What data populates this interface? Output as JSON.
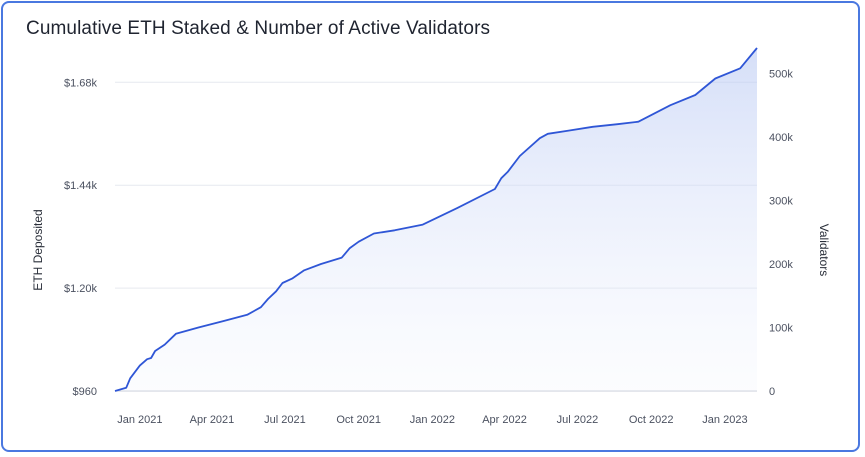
{
  "chart_data": {
    "type": "area",
    "title": "Cumulative ETH Staked & Number of Active Validators",
    "ylabel": "ETH Deposited",
    "y2label": "Validators",
    "ylim": [
      960,
      1760
    ],
    "y_ticks": [
      "$960",
      "$1.20k",
      "$1.44k",
      "$1.68k"
    ],
    "y_tick_values": [
      960,
      1200,
      1440,
      1680
    ],
    "y2lim": [
      0,
      540000
    ],
    "y2_ticks": [
      "0",
      "100k",
      "200k",
      "300k",
      "400k",
      "500k"
    ],
    "y2_tick_values": [
      0,
      100000,
      200000,
      300000,
      400000,
      500000
    ],
    "x_ticks": [
      "Jan 2021",
      "Apr 2021",
      "Jul 2021",
      "Oct 2021",
      "Jan 2022",
      "Apr 2022",
      "Jul 2022",
      "Oct 2022",
      "Jan 2023"
    ],
    "grid": true,
    "series": [
      {
        "values_axis": "y2",
        "x": [
          "2020-12-01",
          "2020-12-15",
          "2020-12-20",
          "2021-01-01",
          "2021-01-10",
          "2021-01-15",
          "2021-01-20",
          "2021-02-01",
          "2021-02-15",
          "2021-03-15",
          "2021-04-15",
          "2021-05-15",
          "2021-06-01",
          "2021-06-10",
          "2021-06-20",
          "2021-06-28",
          "2021-07-10",
          "2021-07-25",
          "2021-08-15",
          "2021-09-10",
          "2021-09-20",
          "2021-10-01",
          "2021-10-20",
          "2021-11-15",
          "2021-12-20",
          "2022-02-01",
          "2022-03-20",
          "2022-03-28",
          "2022-04-05",
          "2022-04-20",
          "2022-05-15",
          "2022-05-25",
          "2022-06-20",
          "2022-07-20",
          "2022-08-20",
          "2022-09-15",
          "2022-10-05",
          "2022-10-25",
          "2022-11-25",
          "2022-12-20",
          "2023-01-20",
          "2023-02-10"
        ],
        "values": [
          0,
          5000,
          20000,
          40000,
          50000,
          52000,
          63000,
          73000,
          90000,
          100000,
          110000,
          120000,
          132000,
          145000,
          157000,
          170000,
          177000,
          190000,
          200000,
          210000,
          225000,
          235000,
          248000,
          253000,
          262000,
          288000,
          318000,
          335000,
          345000,
          370000,
          398000,
          405000,
          410000,
          416000,
          420000,
          424000,
          437000,
          450000,
          466000,
          492000,
          508000,
          540000
        ]
      }
    ]
  }
}
